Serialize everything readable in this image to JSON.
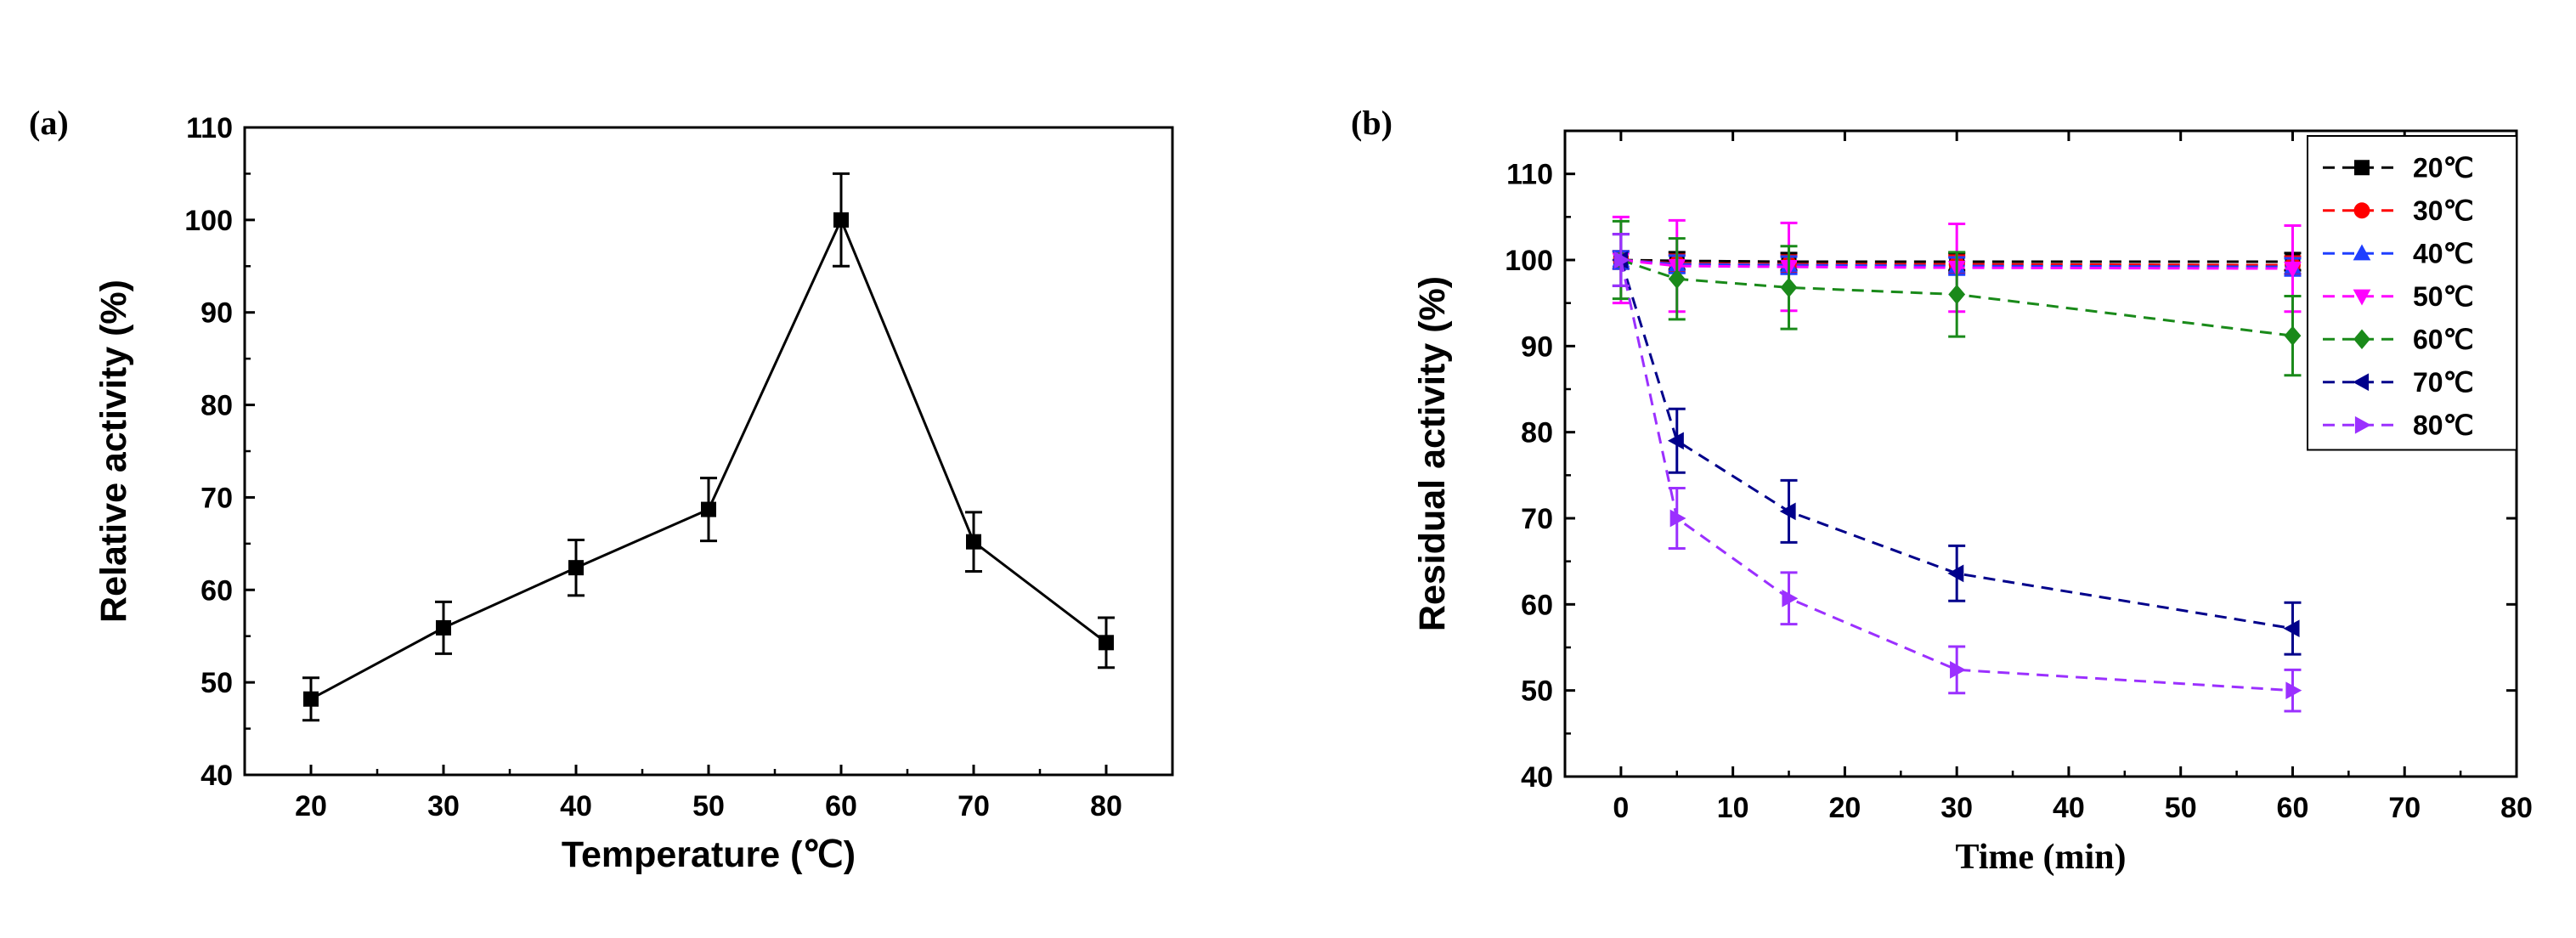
{
  "chart_data": [
    {
      "panel_label": "(a)",
      "type": "line",
      "title": "",
      "xlabel": "Temperature (℃)",
      "ylabel": "Relative activity (%)",
      "xlim": [
        15,
        85
      ],
      "ylim": [
        40,
        110
      ],
      "xticks": [
        20,
        30,
        40,
        50,
        60,
        70,
        80
      ],
      "yticks": [
        40,
        50,
        60,
        70,
        80,
        90,
        100,
        110
      ],
      "series": [
        {
          "name": "activity",
          "color": "#000000",
          "marker": "square",
          "line": "solid",
          "x": [
            20,
            30,
            40,
            50,
            60,
            70,
            80
          ],
          "y": [
            48.2,
            55.9,
            62.4,
            68.7,
            100.0,
            65.2,
            54.3
          ],
          "err": [
            2.3,
            2.8,
            3.0,
            3.4,
            5.0,
            3.2,
            2.7
          ]
        }
      ]
    },
    {
      "panel_label": "(b)",
      "type": "line",
      "title": "",
      "xlabel": "Time (min)",
      "ylabel": "Residual activity (%)",
      "xlim": [
        -5,
        80
      ],
      "ylim": [
        40,
        115
      ],
      "xticks": [
        0,
        10,
        20,
        30,
        40,
        50,
        60,
        70,
        80
      ],
      "yticks": [
        40,
        50,
        60,
        70,
        80,
        90,
        100,
        110
      ],
      "legend_position": "top-right",
      "series": [
        {
          "name": "20℃",
          "color": "#000000",
          "marker": "square",
          "x": [
            0,
            5,
            15,
            30,
            60
          ],
          "y": [
            100,
            99.9,
            99.8,
            99.8,
            99.8
          ],
          "err": [
            1.0,
            1.0,
            1.0,
            1.0,
            1.0
          ]
        },
        {
          "name": "30℃",
          "color": "#ff0000",
          "marker": "circle",
          "x": [
            0,
            5,
            15,
            30,
            60
          ],
          "y": [
            100,
            99.6,
            99.5,
            99.5,
            99.4
          ],
          "err": [
            1.0,
            1.0,
            1.0,
            1.0,
            1.0
          ]
        },
        {
          "name": "40℃",
          "color": "#1f3fff",
          "marker": "triangle-up",
          "x": [
            0,
            5,
            15,
            30,
            60
          ],
          "y": [
            100,
            99.5,
            99.4,
            99.3,
            99.2
          ],
          "err": [
            1.0,
            1.0,
            1.0,
            1.0,
            1.0
          ]
        },
        {
          "name": "50℃",
          "color": "#ff00ff",
          "marker": "triangle-down",
          "x": [
            0,
            5,
            15,
            30,
            60
          ],
          "y": [
            100,
            99.3,
            99.2,
            99.1,
            99.0
          ],
          "err": [
            5.0,
            5.3,
            5.1,
            5.1,
            5.0
          ]
        },
        {
          "name": "60℃",
          "color": "#1a8a1a",
          "marker": "diamond",
          "x": [
            0,
            5,
            15,
            30,
            60
          ],
          "y": [
            100,
            97.8,
            96.8,
            96.0,
            91.2
          ],
          "err": [
            4.5,
            4.7,
            4.8,
            4.9,
            4.6
          ]
        },
        {
          "name": "70℃",
          "color": "#00008b",
          "marker": "triangle-left",
          "x": [
            0,
            5,
            15,
            30,
            60
          ],
          "y": [
            100,
            79.0,
            70.8,
            63.6,
            57.2
          ],
          "err": [
            3.0,
            3.7,
            3.6,
            3.2,
            3.0
          ]
        },
        {
          "name": "80℃",
          "color": "#9b30ff",
          "marker": "triangle-right",
          "x": [
            0,
            5,
            15,
            30,
            60
          ],
          "y": [
            100,
            70.0,
            60.7,
            52.4,
            50.0
          ],
          "err": [
            3.0,
            3.5,
            3.0,
            2.7,
            2.4
          ]
        }
      ]
    }
  ]
}
